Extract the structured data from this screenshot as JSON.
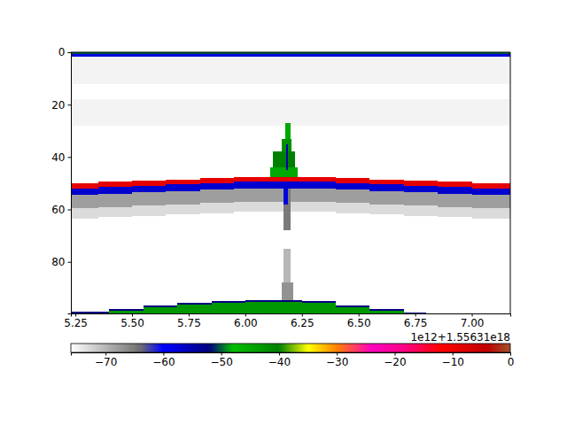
{
  "chart_data": {
    "type": "heatmap",
    "offset_text": "1e12+1.55631e18",
    "xlim": [
      5.23,
      7.17
    ],
    "ylim": [
      99.7,
      0
    ],
    "xticks": [
      {
        "value": 5.25,
        "label": "5.25"
      },
      {
        "value": 5.5,
        "label": "5.50"
      },
      {
        "value": 5.75,
        "label": "5.75"
      },
      {
        "value": 6.0,
        "label": "6.00"
      },
      {
        "value": 6.25,
        "label": "6.25"
      },
      {
        "value": 6.5,
        "label": "6.50"
      },
      {
        "value": 6.75,
        "label": "6.75"
      },
      {
        "value": 7.0,
        "label": "7.00"
      }
    ],
    "yticks": [
      0,
      20,
      40,
      60,
      80
    ],
    "colorbar": {
      "range": [
        -76,
        0
      ],
      "ticks": [
        {
          "value": -70,
          "label": "−70"
        },
        {
          "value": -60,
          "label": "−60"
        },
        {
          "value": -50,
          "label": "−50"
        },
        {
          "value": -40,
          "label": "−40"
        },
        {
          "value": -30,
          "label": "−30"
        },
        {
          "value": -20,
          "label": "−20"
        },
        {
          "value": -10,
          "label": "−10"
        },
        0
      ]
    },
    "cells": [
      {
        "x0": 5.23,
        "x1": 7.17,
        "y0": 1.6,
        "y1": 12,
        "value": -75
      },
      {
        "x0": 5.23,
        "x1": 7.17,
        "y0": 18,
        "y1": 28,
        "value": -75
      },
      {
        "x0": 5.23,
        "x1": 7.17,
        "y0": 0,
        "y1": 0.8,
        "value": -50
      },
      {
        "x0": 5.23,
        "x1": 7.17,
        "y0": 0.8,
        "y1": 1.6,
        "value": -58
      },
      {
        "x0": 5.23,
        "x1": 5.35,
        "y0": 59.5,
        "y1": 63.5,
        "value": -73
      },
      {
        "x0": 5.35,
        "x1": 5.5,
        "y0": 59,
        "y1": 63,
        "value": -73
      },
      {
        "x0": 5.5,
        "x1": 5.65,
        "y0": 58.5,
        "y1": 62.5,
        "value": -73
      },
      {
        "x0": 5.65,
        "x1": 5.8,
        "y0": 58,
        "y1": 62,
        "value": -73
      },
      {
        "x0": 5.8,
        "x1": 5.95,
        "y0": 57.5,
        "y1": 61.5,
        "value": -73
      },
      {
        "x0": 5.95,
        "x1": 6.1,
        "y0": 57,
        "y1": 61,
        "value": -73
      },
      {
        "x0": 6.1,
        "x1": 6.25,
        "y0": 57,
        "y1": 61,
        "value": -73
      },
      {
        "x0": 6.25,
        "x1": 6.4,
        "y0": 57,
        "y1": 61,
        "value": -73
      },
      {
        "x0": 6.4,
        "x1": 6.55,
        "y0": 57.5,
        "y1": 61.5,
        "value": -73
      },
      {
        "x0": 6.55,
        "x1": 6.7,
        "y0": 58,
        "y1": 62,
        "value": -73
      },
      {
        "x0": 6.7,
        "x1": 6.85,
        "y0": 58.5,
        "y1": 62.5,
        "value": -73
      },
      {
        "x0": 6.85,
        "x1": 7.0,
        "y0": 59,
        "y1": 63,
        "value": -73
      },
      {
        "x0": 7.0,
        "x1": 7.17,
        "y0": 59.5,
        "y1": 63.5,
        "value": -73
      },
      {
        "x0": 5.23,
        "x1": 5.35,
        "y0": 54.5,
        "y1": 59.5,
        "value": -68
      },
      {
        "x0": 5.35,
        "x1": 5.5,
        "y0": 54,
        "y1": 59,
        "value": -68
      },
      {
        "x0": 5.5,
        "x1": 5.65,
        "y0": 53.5,
        "y1": 58.5,
        "value": -68
      },
      {
        "x0": 5.65,
        "x1": 5.8,
        "y0": 53,
        "y1": 58,
        "value": -68
      },
      {
        "x0": 5.8,
        "x1": 5.95,
        "y0": 52.5,
        "y1": 57.5,
        "value": -68
      },
      {
        "x0": 5.95,
        "x1": 6.1,
        "y0": 52,
        "y1": 57,
        "value": -68
      },
      {
        "x0": 6.1,
        "x1": 6.25,
        "y0": 52,
        "y1": 57,
        "value": -68
      },
      {
        "x0": 6.25,
        "x1": 6.4,
        "y0": 52,
        "y1": 57,
        "value": -68
      },
      {
        "x0": 6.4,
        "x1": 6.55,
        "y0": 52.5,
        "y1": 57.5,
        "value": -68
      },
      {
        "x0": 6.55,
        "x1": 6.7,
        "y0": 53,
        "y1": 58,
        "value": -68
      },
      {
        "x0": 6.7,
        "x1": 6.85,
        "y0": 53.5,
        "y1": 58.5,
        "value": -68
      },
      {
        "x0": 6.85,
        "x1": 7.0,
        "y0": 54,
        "y1": 59,
        "value": -68
      },
      {
        "x0": 7.0,
        "x1": 7.17,
        "y0": 54.5,
        "y1": 59.5,
        "value": -68
      },
      {
        "x0": 5.23,
        "x1": 5.35,
        "y0": 52,
        "y1": 54.5,
        "value": -57
      },
      {
        "x0": 5.35,
        "x1": 5.5,
        "y0": 51.5,
        "y1": 54,
        "value": -57
      },
      {
        "x0": 5.5,
        "x1": 5.65,
        "y0": 51,
        "y1": 53.5,
        "value": -57
      },
      {
        "x0": 5.65,
        "x1": 5.8,
        "y0": 50.5,
        "y1": 53,
        "value": -57
      },
      {
        "x0": 5.8,
        "x1": 5.95,
        "y0": 50,
        "y1": 52.5,
        "value": -57
      },
      {
        "x0": 5.95,
        "x1": 6.1,
        "y0": 49.5,
        "y1": 52,
        "value": -57
      },
      {
        "x0": 6.1,
        "x1": 6.25,
        "y0": 49.5,
        "y1": 52,
        "value": -57
      },
      {
        "x0": 6.25,
        "x1": 6.4,
        "y0": 49.5,
        "y1": 52,
        "value": -57
      },
      {
        "x0": 6.4,
        "x1": 6.55,
        "y0": 50,
        "y1": 52.5,
        "value": -57
      },
      {
        "x0": 6.55,
        "x1": 6.7,
        "y0": 50.5,
        "y1": 53,
        "value": -57
      },
      {
        "x0": 6.7,
        "x1": 6.85,
        "y0": 51,
        "y1": 53.5,
        "value": -57
      },
      {
        "x0": 6.85,
        "x1": 7.0,
        "y0": 51.5,
        "y1": 54,
        "value": -57
      },
      {
        "x0": 7.0,
        "x1": 7.17,
        "y0": 52,
        "y1": 54.5,
        "value": -57
      },
      {
        "x0": 5.23,
        "x1": 5.35,
        "y0": 50,
        "y1": 52,
        "value": -9
      },
      {
        "x0": 5.35,
        "x1": 5.5,
        "y0": 49.5,
        "y1": 51.5,
        "value": -9
      },
      {
        "x0": 5.5,
        "x1": 5.65,
        "y0": 49,
        "y1": 51,
        "value": -9
      },
      {
        "x0": 5.65,
        "x1": 5.8,
        "y0": 48.5,
        "y1": 50.5,
        "value": -9
      },
      {
        "x0": 5.8,
        "x1": 5.95,
        "y0": 48,
        "y1": 50,
        "value": -9
      },
      {
        "x0": 5.95,
        "x1": 6.1,
        "y0": 47.5,
        "y1": 49.5,
        "value": -9
      },
      {
        "x0": 6.1,
        "x1": 6.25,
        "y0": 47.5,
        "y1": 49.5,
        "value": -9
      },
      {
        "x0": 6.25,
        "x1": 6.4,
        "y0": 47.5,
        "y1": 49.5,
        "value": -9
      },
      {
        "x0": 6.4,
        "x1": 6.55,
        "y0": 48,
        "y1": 50,
        "value": -9
      },
      {
        "x0": 6.55,
        "x1": 6.7,
        "y0": 48.5,
        "y1": 50.5,
        "value": -9
      },
      {
        "x0": 6.7,
        "x1": 6.85,
        "y0": 49,
        "y1": 51,
        "value": -9
      },
      {
        "x0": 6.85,
        "x1": 7.0,
        "y0": 49.5,
        "y1": 51.5,
        "value": -9
      },
      {
        "x0": 7.0,
        "x1": 7.17,
        "y0": 50,
        "y1": 52,
        "value": -9
      },
      {
        "x0": 6.175,
        "x1": 6.2,
        "y0": 27,
        "y1": 33,
        "value": -45
      },
      {
        "x0": 6.16,
        "x1": 6.205,
        "y0": 33,
        "y1": 38,
        "value": -42
      },
      {
        "x0": 6.12,
        "x1": 6.22,
        "y0": 38,
        "y1": 44,
        "value": -40
      },
      {
        "x0": 6.11,
        "x1": 6.23,
        "y0": 44,
        "y1": 47.5,
        "value": -45
      },
      {
        "x0": 6.18,
        "x1": 6.19,
        "y0": 35,
        "y1": 45,
        "value": -55
      },
      {
        "x0": 6.17,
        "x1": 6.2,
        "y0": 52,
        "y1": 68,
        "value": -65
      },
      {
        "x0": 6.17,
        "x1": 6.19,
        "y0": 52,
        "y1": 58,
        "value": -58
      },
      {
        "x0": 6.17,
        "x1": 6.2,
        "y0": 75,
        "y1": 92,
        "value": -70
      },
      {
        "x0": 6.16,
        "x1": 6.21,
        "y0": 88,
        "y1": 96,
        "value": -67
      },
      {
        "x0": 5.23,
        "x1": 5.4,
        "y0": 99,
        "y1": 99.8,
        "value": -52
      },
      {
        "x0": 5.4,
        "x1": 5.55,
        "y0": 98,
        "y1": 98.8,
        "value": -52
      },
      {
        "x0": 5.55,
        "x1": 5.7,
        "y0": 96.5,
        "y1": 97.3,
        "value": -52
      },
      {
        "x0": 5.7,
        "x1": 5.85,
        "y0": 95.5,
        "y1": 96.3,
        "value": -52
      },
      {
        "x0": 5.85,
        "x1": 6.0,
        "y0": 94.8,
        "y1": 95.6,
        "value": -52
      },
      {
        "x0": 6.0,
        "x1": 6.25,
        "y0": 94.5,
        "y1": 95.3,
        "value": -52
      },
      {
        "x0": 6.25,
        "x1": 6.4,
        "y0": 95,
        "y1": 95.8,
        "value": -52
      },
      {
        "x0": 6.4,
        "x1": 6.55,
        "y0": 96.5,
        "y1": 97.3,
        "value": -52
      },
      {
        "x0": 6.55,
        "x1": 6.7,
        "y0": 98,
        "y1": 98.8,
        "value": -52
      },
      {
        "x0": 6.7,
        "x1": 6.8,
        "y0": 99.3,
        "y1": 100,
        "value": -52
      },
      {
        "x0": 5.4,
        "x1": 5.55,
        "y0": 98.8,
        "y1": 100,
        "value": -43
      },
      {
        "x0": 5.55,
        "x1": 5.7,
        "y0": 97.3,
        "y1": 100,
        "value": -43
      },
      {
        "x0": 5.7,
        "x1": 5.85,
        "y0": 96.3,
        "y1": 100,
        "value": -43
      },
      {
        "x0": 5.85,
        "x1": 6.0,
        "y0": 95.6,
        "y1": 100,
        "value": -43
      },
      {
        "x0": 6.0,
        "x1": 6.25,
        "y0": 95.3,
        "y1": 100,
        "value": -43
      },
      {
        "x0": 6.25,
        "x1": 6.4,
        "y0": 95.8,
        "y1": 100,
        "value": -43
      },
      {
        "x0": 6.4,
        "x1": 6.55,
        "y0": 97.3,
        "y1": 100,
        "value": -43
      },
      {
        "x0": 6.55,
        "x1": 6.7,
        "y0": 98.8,
        "y1": 100,
        "value": -43
      }
    ]
  }
}
